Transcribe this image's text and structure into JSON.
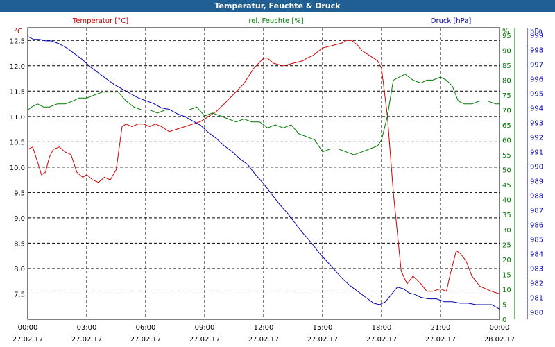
{
  "window": {
    "title": "Temperatur, Feuchte & Druck"
  },
  "colors": {
    "temperature": "#cc0000",
    "humidity": "#007a00",
    "pressure": "#0000b0",
    "titlebar": "#1f5f93",
    "grid": "#000000",
    "text": "#000000"
  },
  "chart_data": {
    "type": "line",
    "title": "Temperatur, Feuchte & Druck",
    "x_ticks": [
      {
        "time": "00:00",
        "date": "27.02.17"
      },
      {
        "time": "03:00",
        "date": "27.02.17"
      },
      {
        "time": "06:00",
        "date": "27.02.17"
      },
      {
        "time": "09:00",
        "date": "27.02.17"
      },
      {
        "time": "12:00",
        "date": "27.02.17"
      },
      {
        "time": "15:00",
        "date": "27.02.17"
      },
      {
        "time": "18:00",
        "date": "27.02.17"
      },
      {
        "time": "21:00",
        "date": "27.02.17"
      },
      {
        "time": "00:00",
        "date": "28.02.17"
      }
    ],
    "x_range_hours": [
      0,
      24
    ],
    "axes": {
      "temperature": {
        "label": "Temperatur [°C]",
        "unit": "°C",
        "ylim": [
          7.0,
          12.75
        ],
        "ticks": [
          "7.5",
          "8.0",
          "8.5",
          "9.0",
          "9.5",
          "10.0",
          "10.5",
          "11.0",
          "11.5",
          "12.0",
          "12.5"
        ]
      },
      "humidity": {
        "label": "rel. Feuchte [%]",
        "unit": "%",
        "ylim": [
          0,
          97.5
        ],
        "ticks": [
          "0",
          "5",
          "10",
          "15",
          "20",
          "25",
          "30",
          "35",
          "40",
          "45",
          "50",
          "55",
          "60",
          "65",
          "70",
          "75",
          "80",
          "85",
          "90",
          "95"
        ]
      },
      "pressure": {
        "label": "Druck [hPa]",
        "unit": "hPa",
        "ylim": [
          979.5,
          999.5
        ],
        "ticks": [
          "980",
          "981",
          "982",
          "983",
          "984",
          "985",
          "986",
          "987",
          "988",
          "989",
          "990",
          "991",
          "992",
          "993",
          "994",
          "995",
          "996",
          "997",
          "998",
          "999"
        ]
      }
    },
    "series": [
      {
        "name": "Temperatur [°C]",
        "axis": "temperature",
        "color": "#cc0000",
        "x": [
          0,
          0.25,
          0.5,
          0.7,
          0.9,
          1.1,
          1.3,
          1.6,
          1.9,
          2.2,
          2.5,
          2.8,
          3.0,
          3.3,
          3.6,
          3.9,
          4.2,
          4.5,
          4.8,
          5.0,
          5.3,
          5.6,
          5.9,
          6.2,
          6.5,
          6.8,
          7.2,
          7.6,
          8.0,
          8.4,
          8.8,
          9.2,
          9.6,
          10.0,
          10.5,
          11.0,
          11.5,
          12.0,
          12.2,
          12.5,
          13.0,
          13.5,
          14.0,
          14.2,
          14.5,
          15.0,
          15.5,
          16.0,
          16.2,
          16.5,
          16.8,
          17.0,
          17.4,
          17.8,
          18.0,
          18.3,
          18.6,
          19.0,
          19.3,
          19.6,
          20.0,
          20.3,
          20.6,
          21.0,
          21.3,
          21.5,
          21.8,
          22.0,
          22.3,
          22.6,
          23.0,
          23.3,
          23.6,
          24.0
        ],
        "values": [
          10.35,
          10.4,
          10.1,
          9.85,
          9.9,
          10.2,
          10.35,
          10.4,
          10.3,
          10.25,
          9.9,
          9.8,
          9.85,
          9.75,
          9.7,
          9.8,
          9.75,
          9.95,
          10.8,
          10.85,
          10.8,
          10.85,
          10.85,
          10.8,
          10.85,
          10.8,
          10.7,
          10.75,
          10.8,
          10.85,
          10.9,
          11.0,
          11.1,
          11.25,
          11.45,
          11.65,
          11.95,
          12.15,
          12.15,
          12.05,
          12.0,
          12.05,
          12.1,
          12.15,
          12.2,
          12.35,
          12.4,
          12.45,
          12.5,
          12.5,
          12.4,
          12.3,
          12.2,
          12.1,
          11.95,
          11.0,
          9.5,
          7.95,
          7.7,
          7.85,
          7.7,
          7.55,
          7.55,
          7.6,
          7.55,
          7.9,
          8.35,
          8.3,
          8.15,
          7.85,
          7.65,
          7.6,
          7.55,
          7.5
        ]
      },
      {
        "name": "rel. Feuchte [%]",
        "axis": "humidity",
        "color": "#007a00",
        "x": [
          0,
          0.2,
          0.5,
          0.8,
          1.1,
          1.5,
          1.9,
          2.3,
          2.6,
          3.0,
          3.4,
          3.8,
          4.2,
          4.6,
          5.0,
          5.4,
          5.8,
          6.2,
          6.6,
          7.0,
          7.4,
          7.8,
          8.2,
          8.6,
          9.0,
          9.4,
          9.8,
          10.2,
          10.6,
          11.0,
          11.4,
          11.8,
          12.2,
          12.6,
          13.0,
          13.4,
          13.8,
          14.2,
          14.6,
          15.0,
          15.4,
          15.8,
          16.2,
          16.6,
          17.0,
          17.4,
          17.8,
          18.0,
          18.3,
          18.6,
          18.9,
          19.2,
          19.6,
          20.0,
          20.3,
          20.6,
          21.0,
          21.3,
          21.6,
          21.9,
          22.2,
          22.6,
          23.0,
          23.4,
          23.8,
          24.0
        ],
        "values": [
          70,
          71,
          72,
          71,
          71,
          72,
          72,
          73,
          74,
          74,
          75,
          76,
          76,
          76,
          73,
          71,
          70,
          70,
          69,
          70,
          70,
          70,
          70,
          71,
          68,
          69,
          68,
          67,
          66,
          67,
          66,
          66,
          64,
          65,
          64,
          65,
          62,
          61,
          60,
          56,
          57,
          57,
          56,
          55,
          56,
          57,
          58,
          60,
          68,
          80,
          81,
          82,
          80,
          79,
          80,
          80,
          81,
          80,
          78,
          73,
          72,
          72,
          73,
          73,
          72,
          72
        ]
      },
      {
        "name": "Druck [hPa]",
        "axis": "pressure",
        "color": "#0000b0",
        "x": [
          0,
          0.3,
          0.6,
          0.9,
          1.2,
          1.6,
          2.0,
          2.4,
          2.8,
          3.2,
          3.6,
          4.0,
          4.4,
          4.8,
          5.2,
          5.6,
          6.0,
          6.4,
          6.8,
          7.2,
          7.6,
          8.0,
          8.4,
          8.8,
          9.2,
          9.6,
          10.0,
          10.4,
          10.8,
          11.2,
          11.6,
          12.0,
          12.4,
          12.8,
          13.2,
          13.6,
          14.0,
          14.4,
          14.8,
          15.2,
          15.6,
          16.0,
          16.4,
          16.8,
          17.2,
          17.6,
          17.9,
          18.2,
          18.5,
          18.8,
          19.1,
          19.4,
          19.7,
          20.0,
          20.4,
          20.8,
          21.2,
          21.6,
          22.0,
          22.4,
          22.8,
          23.2,
          23.6,
          24.0
        ],
        "values": [
          998.9,
          998.7,
          998.7,
          998.6,
          998.6,
          998.4,
          998.1,
          997.7,
          997.3,
          996.8,
          996.4,
          996.0,
          995.6,
          995.3,
          995.0,
          994.7,
          994.5,
          994.3,
          994.0,
          993.9,
          993.6,
          993.4,
          993.1,
          992.8,
          992.3,
          991.9,
          991.4,
          991.0,
          990.5,
          990.1,
          989.4,
          988.8,
          988.1,
          987.4,
          986.8,
          986.1,
          985.4,
          984.8,
          984.1,
          983.5,
          982.9,
          982.3,
          981.8,
          981.4,
          981.0,
          980.6,
          980.5,
          980.7,
          981.2,
          981.7,
          981.6,
          981.3,
          981.2,
          981.0,
          980.9,
          980.9,
          980.7,
          980.7,
          980.6,
          980.6,
          980.5,
          980.5,
          980.5,
          980.2
        ]
      }
    ]
  }
}
